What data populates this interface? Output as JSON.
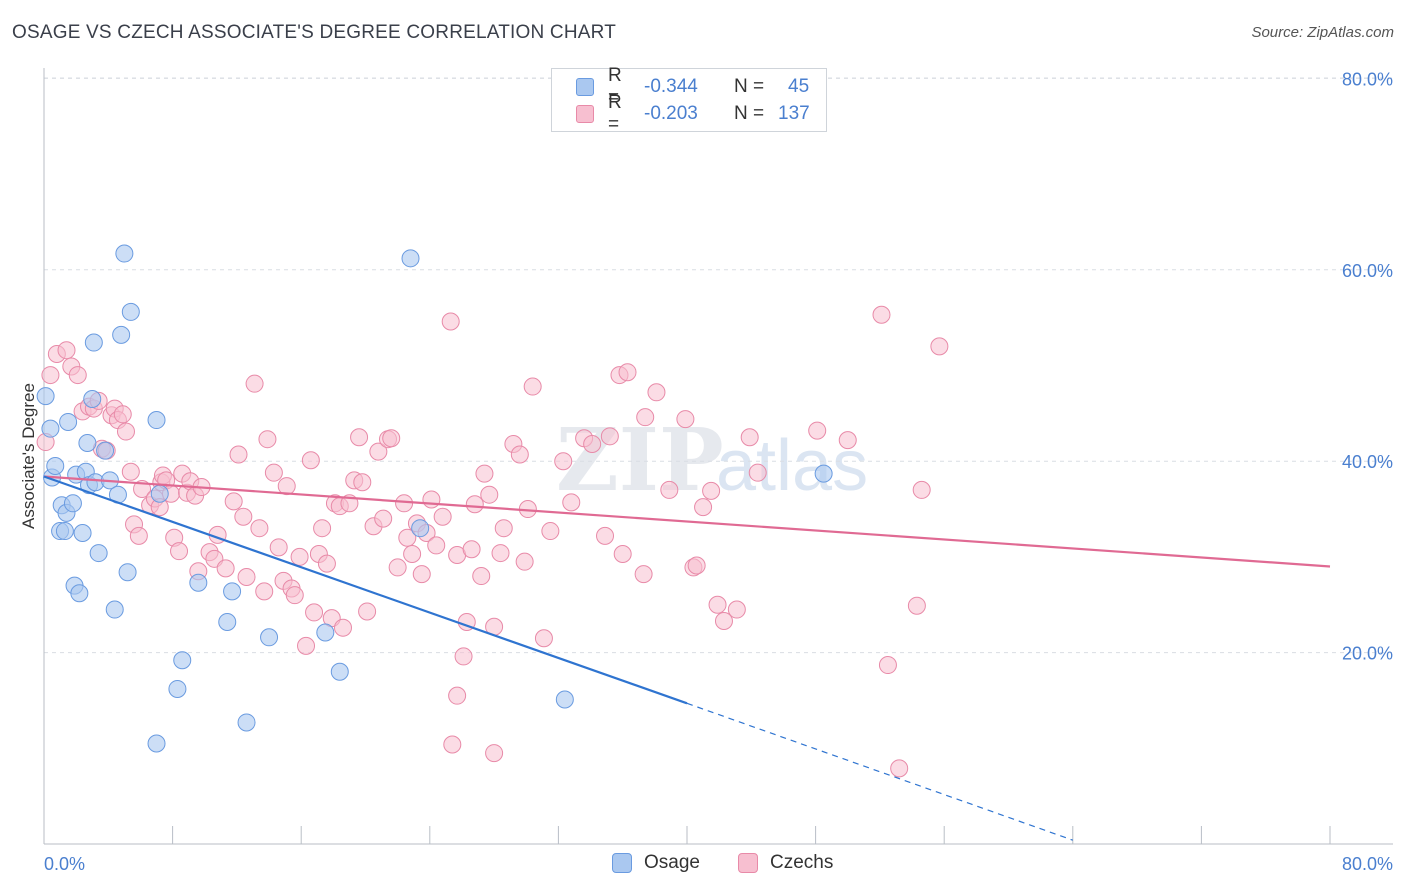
{
  "title": "OSAGE VS CZECH ASSOCIATE'S DEGREE CORRELATION CHART",
  "source": "Source: ZipAtlas.com",
  "watermark": {
    "zip": "ZIP",
    "atlas": "atlas"
  },
  "legend": {
    "rows": [
      {
        "r_label": "R =",
        "r_value": "-0.344",
        "n_label": "N =",
        "n_value": "45"
      },
      {
        "r_label": "R =",
        "r_value": "-0.203",
        "n_label": "N =",
        "n_value": "137"
      }
    ]
  },
  "bottom_legend": {
    "osage": "Osage",
    "czechs": "Czechs"
  },
  "colors": {
    "osage_fill": "#aac8f0",
    "osage_stroke": "#6a9be0",
    "osage_line": "#2f74d0",
    "czech_fill": "#f7bfd0",
    "czech_stroke": "#e88aa8",
    "czech_line": "#e06a93",
    "grid": "#d9dde3",
    "tick_text": "#4a7fcf"
  },
  "chart_data": {
    "type": "scatter",
    "title": "OSAGE VS CZECH ASSOCIATE'S DEGREE CORRELATION CHART",
    "xlabel": "",
    "ylabel": "Associate's Degree",
    "xlim": [
      0,
      0.84
    ],
    "ylim": [
      0,
      0.82
    ],
    "x_tick_labels": [
      "0.0%",
      "80.0%"
    ],
    "y_ticks": [
      0.2,
      0.4,
      0.6,
      0.8
    ],
    "y_tick_labels": [
      "20.0%",
      "40.0%",
      "60.0%",
      "80.0%"
    ],
    "grid": true,
    "series": [
      {
        "name": "Osage",
        "r": -0.344,
        "n": 45,
        "trend": {
          "x_start": 0.0,
          "y_start": 0.384,
          "x_solid_end": 0.4,
          "y_solid_end": 0.147,
          "x_dashed_end": 0.64,
          "y_dashed_end": 0.004
        },
        "points": [
          [
            0.001,
            0.468
          ],
          [
            0.004,
            0.434
          ],
          [
            0.005,
            0.383
          ],
          [
            0.007,
            0.395
          ],
          [
            0.01,
            0.327
          ],
          [
            0.011,
            0.354
          ],
          [
            0.013,
            0.327
          ],
          [
            0.014,
            0.346
          ],
          [
            0.015,
            0.441
          ],
          [
            0.018,
            0.356
          ],
          [
            0.019,
            0.27
          ],
          [
            0.02,
            0.386
          ],
          [
            0.022,
            0.262
          ],
          [
            0.024,
            0.325
          ],
          [
            0.026,
            0.389
          ],
          [
            0.027,
            0.419
          ],
          [
            0.028,
            0.375
          ],
          [
            0.03,
            0.465
          ],
          [
            0.031,
            0.524
          ],
          [
            0.032,
            0.378
          ],
          [
            0.034,
            0.304
          ],
          [
            0.038,
            0.411
          ],
          [
            0.041,
            0.38
          ],
          [
            0.044,
            0.245
          ],
          [
            0.046,
            0.365
          ],
          [
            0.048,
            0.532
          ],
          [
            0.05,
            0.617
          ],
          [
            0.052,
            0.284
          ],
          [
            0.054,
            0.556
          ],
          [
            0.07,
            0.443
          ],
          [
            0.07,
            0.105
          ],
          [
            0.072,
            0.366
          ],
          [
            0.083,
            0.162
          ],
          [
            0.086,
            0.192
          ],
          [
            0.096,
            0.273
          ],
          [
            0.114,
            0.232
          ],
          [
            0.117,
            0.264
          ],
          [
            0.126,
            0.127
          ],
          [
            0.14,
            0.216
          ],
          [
            0.175,
            0.221
          ],
          [
            0.184,
            0.18
          ],
          [
            0.228,
            0.612
          ],
          [
            0.234,
            0.33
          ],
          [
            0.324,
            0.151
          ],
          [
            0.485,
            0.387
          ]
        ]
      },
      {
        "name": "Czechs",
        "r": -0.203,
        "n": 137,
        "trend": {
          "x_start": 0.0,
          "y_start": 0.384,
          "x_end": 0.8,
          "y_end": 0.29
        },
        "points": [
          [
            0.001,
            0.42
          ],
          [
            0.004,
            0.49
          ],
          [
            0.008,
            0.512
          ],
          [
            0.014,
            0.516
          ],
          [
            0.017,
            0.499
          ],
          [
            0.021,
            0.49
          ],
          [
            0.024,
            0.452
          ],
          [
            0.028,
            0.457
          ],
          [
            0.031,
            0.455
          ],
          [
            0.034,
            0.463
          ],
          [
            0.036,
            0.413
          ],
          [
            0.039,
            0.411
          ],
          [
            0.042,
            0.448
          ],
          [
            0.044,
            0.455
          ],
          [
            0.046,
            0.443
          ],
          [
            0.049,
            0.449
          ],
          [
            0.051,
            0.431
          ],
          [
            0.054,
            0.389
          ],
          [
            0.056,
            0.334
          ],
          [
            0.059,
            0.322
          ],
          [
            0.061,
            0.371
          ],
          [
            0.066,
            0.354
          ],
          [
            0.069,
            0.361
          ],
          [
            0.072,
            0.352
          ],
          [
            0.073,
            0.378
          ],
          [
            0.074,
            0.385
          ],
          [
            0.076,
            0.38
          ],
          [
            0.079,
            0.366
          ],
          [
            0.081,
            0.32
          ],
          [
            0.084,
            0.306
          ],
          [
            0.086,
            0.387
          ],
          [
            0.089,
            0.367
          ],
          [
            0.091,
            0.379
          ],
          [
            0.094,
            0.364
          ],
          [
            0.096,
            0.285
          ],
          [
            0.098,
            0.373
          ],
          [
            0.103,
            0.305
          ],
          [
            0.106,
            0.298
          ],
          [
            0.108,
            0.323
          ],
          [
            0.113,
            0.288
          ],
          [
            0.118,
            0.358
          ],
          [
            0.121,
            0.407
          ],
          [
            0.124,
            0.342
          ],
          [
            0.126,
            0.279
          ],
          [
            0.131,
            0.481
          ],
          [
            0.134,
            0.33
          ],
          [
            0.137,
            0.264
          ],
          [
            0.139,
            0.423
          ],
          [
            0.143,
            0.388
          ],
          [
            0.146,
            0.31
          ],
          [
            0.149,
            0.275
          ],
          [
            0.151,
            0.374
          ],
          [
            0.154,
            0.267
          ],
          [
            0.156,
            0.26
          ],
          [
            0.159,
            0.3
          ],
          [
            0.163,
            0.207
          ],
          [
            0.166,
            0.401
          ],
          [
            0.168,
            0.242
          ],
          [
            0.171,
            0.303
          ],
          [
            0.173,
            0.33
          ],
          [
            0.176,
            0.293
          ],
          [
            0.179,
            0.236
          ],
          [
            0.181,
            0.356
          ],
          [
            0.184,
            0.353
          ],
          [
            0.186,
            0.226
          ],
          [
            0.19,
            0.356
          ],
          [
            0.193,
            0.38
          ],
          [
            0.196,
            0.425
          ],
          [
            0.198,
            0.378
          ],
          [
            0.201,
            0.243
          ],
          [
            0.205,
            0.332
          ],
          [
            0.208,
            0.41
          ],
          [
            0.211,
            0.34
          ],
          [
            0.214,
            0.423
          ],
          [
            0.216,
            0.424
          ],
          [
            0.22,
            0.289
          ],
          [
            0.224,
            0.356
          ],
          [
            0.226,
            0.32
          ],
          [
            0.229,
            0.303
          ],
          [
            0.232,
            0.335
          ],
          [
            0.235,
            0.282
          ],
          [
            0.238,
            0.325
          ],
          [
            0.241,
            0.36
          ],
          [
            0.244,
            0.312
          ],
          [
            0.248,
            0.342
          ],
          [
            0.253,
            0.546
          ],
          [
            0.257,
            0.302
          ],
          [
            0.261,
            0.196
          ],
          [
            0.263,
            0.232
          ],
          [
            0.266,
            0.308
          ],
          [
            0.268,
            0.355
          ],
          [
            0.272,
            0.28
          ],
          [
            0.274,
            0.387
          ],
          [
            0.277,
            0.365
          ],
          [
            0.28,
            0.227
          ],
          [
            0.284,
            0.304
          ],
          [
            0.286,
            0.33
          ],
          [
            0.292,
            0.418
          ],
          [
            0.296,
            0.407
          ],
          [
            0.299,
            0.295
          ],
          [
            0.301,
            0.35
          ],
          [
            0.304,
            0.478
          ],
          [
            0.311,
            0.215
          ],
          [
            0.315,
            0.327
          ],
          [
            0.323,
            0.4
          ],
          [
            0.328,
            0.357
          ],
          [
            0.336,
            0.424
          ],
          [
            0.341,
            0.418
          ],
          [
            0.349,
            0.322
          ],
          [
            0.352,
            0.426
          ],
          [
            0.358,
            0.49
          ],
          [
            0.36,
            0.303
          ],
          [
            0.363,
            0.493
          ],
          [
            0.373,
            0.282
          ],
          [
            0.374,
            0.446
          ],
          [
            0.381,
            0.472
          ],
          [
            0.389,
            0.37
          ],
          [
            0.399,
            0.444
          ],
          [
            0.404,
            0.289
          ],
          [
            0.406,
            0.291
          ],
          [
            0.41,
            0.352
          ],
          [
            0.415,
            0.369
          ],
          [
            0.419,
            0.25
          ],
          [
            0.423,
            0.233
          ],
          [
            0.431,
            0.245
          ],
          [
            0.439,
            0.425
          ],
          [
            0.444,
            0.388
          ],
          [
            0.481,
            0.432
          ],
          [
            0.5,
            0.422
          ],
          [
            0.521,
            0.553
          ],
          [
            0.525,
            0.187
          ],
          [
            0.532,
            0.079
          ],
          [
            0.543,
            0.249
          ],
          [
            0.546,
            0.37
          ],
          [
            0.557,
            0.52
          ],
          [
            0.28,
            0.095
          ],
          [
            0.257,
            0.155
          ],
          [
            0.254,
            0.104
          ]
        ]
      }
    ]
  }
}
